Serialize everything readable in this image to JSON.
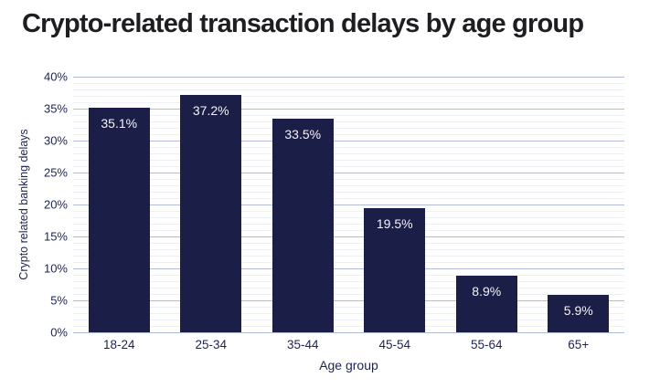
{
  "page_title": "Crypto-related transaction delays by age group",
  "chart_data": {
    "type": "bar",
    "title": "Crypto-related transaction delays by age group",
    "xlabel": "Age group",
    "ylabel": "Crypto related banking delays",
    "categories": [
      "18-24",
      "25-34",
      "35-44",
      "45-54",
      "55-64",
      "65+"
    ],
    "values": [
      35.1,
      37.2,
      33.5,
      19.5,
      8.9,
      5.9
    ],
    "value_labels": [
      "35.1%",
      "37.2%",
      "33.5%",
      "19.5%",
      "8.9%",
      "5.9%"
    ],
    "ylim": [
      0,
      40
    ],
    "y_tick_values": [
      0,
      5,
      10,
      15,
      20,
      25,
      30,
      35,
      40
    ],
    "y_tick_labels": [
      "0%",
      "5%",
      "10%",
      "15%",
      "20%",
      "25%",
      "30%",
      "35%",
      "40%"
    ],
    "minor_grid_step": 1,
    "grid": true,
    "legend_position": "none",
    "colors": {
      "bar": "#1b1e47",
      "bar_label_text": "#f4f4f6",
      "axis_text": "#1e2452",
      "title_text": "#1d1e21",
      "major_grid": "#b2bbdb",
      "minor_grid": "#eef0f7",
      "background": "#ffffff"
    }
  }
}
